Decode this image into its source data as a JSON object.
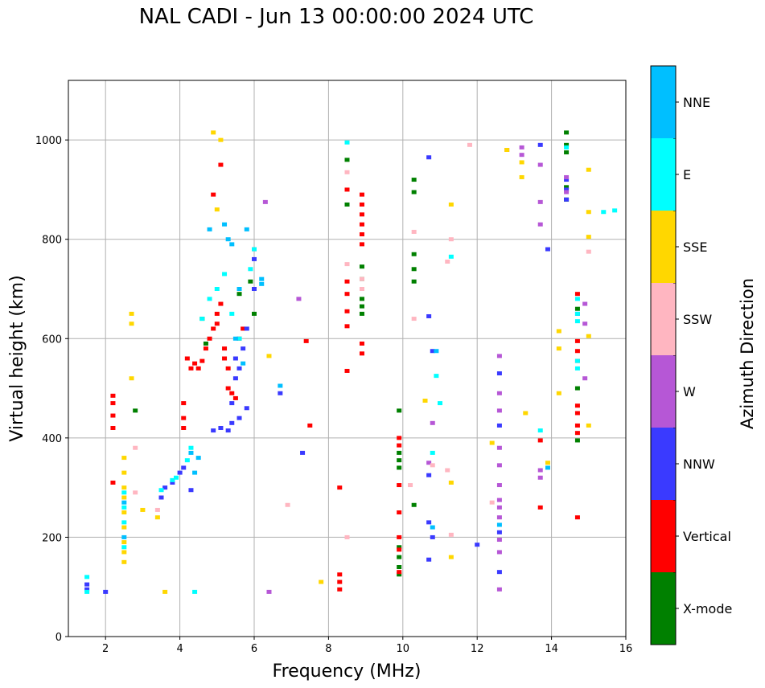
{
  "chart_data": {
    "type": "scatter",
    "title": "NAL CADI - Jun 13 00:00:00 2024 UTC",
    "xlabel": "Frequency (MHz)",
    "ylabel": "Virtual height (km)",
    "xlim": [
      1,
      16
    ],
    "ylim": [
      0,
      1120
    ],
    "xticks": [
      2,
      4,
      6,
      8,
      10,
      12,
      14,
      16
    ],
    "yticks": [
      0,
      200,
      400,
      600,
      800,
      1000
    ],
    "grid": true,
    "colorbar": {
      "label": "Azimuth Direction",
      "categories": [
        "X-mode",
        "Vertical",
        "NNW",
        "W",
        "SSW",
        "SSE",
        "E",
        "NNE"
      ],
      "colors": [
        "#008000",
        "#ff0000",
        "#3a3aff",
        "#b657d6",
        "#ffb6c1",
        "#ffd700",
        "#00ffff",
        "#00bfff"
      ]
    },
    "series": [
      {
        "name": "X-mode",
        "points": [
          [
            2.8,
            455
          ],
          [
            9.9,
            125
          ],
          [
            9.9,
            140
          ],
          [
            9.9,
            160
          ],
          [
            9.9,
            180
          ],
          [
            9.9,
            340
          ],
          [
            9.9,
            355
          ],
          [
            9.9,
            370
          ],
          [
            9.9,
            455
          ],
          [
            10.3,
            265
          ],
          [
            10.3,
            715
          ],
          [
            10.3,
            740
          ],
          [
            10.3,
            770
          ],
          [
            10.3,
            895
          ],
          [
            10.3,
            920
          ],
          [
            8.9,
            650
          ],
          [
            8.9,
            665
          ],
          [
            8.9,
            680
          ],
          [
            8.9,
            720
          ],
          [
            8.9,
            745
          ],
          [
            8.5,
            870
          ],
          [
            8.5,
            960
          ],
          [
            14.4,
            975
          ],
          [
            14.4,
            990
          ],
          [
            14.4,
            1015
          ],
          [
            14.4,
            880
          ],
          [
            14.4,
            905
          ],
          [
            14.7,
            395
          ],
          [
            14.7,
            500
          ],
          [
            14.7,
            660
          ],
          [
            6.0,
            650
          ],
          [
            5.9,
            715
          ],
          [
            4.7,
            590
          ],
          [
            4.6,
            640
          ],
          [
            5.6,
            690
          ]
        ]
      },
      {
        "name": "Vertical",
        "points": [
          [
            2.2,
            420
          ],
          [
            2.2,
            445
          ],
          [
            2.2,
            470
          ],
          [
            2.2,
            485
          ],
          [
            2.2,
            310
          ],
          [
            8.3,
            95
          ],
          [
            8.3,
            110
          ],
          [
            8.3,
            125
          ],
          [
            8.3,
            300
          ],
          [
            8.9,
            570
          ],
          [
            8.9,
            590
          ],
          [
            8.9,
            790
          ],
          [
            8.9,
            810
          ],
          [
            8.9,
            830
          ],
          [
            8.9,
            850
          ],
          [
            8.9,
            870
          ],
          [
            8.9,
            890
          ],
          [
            9.9,
            130
          ],
          [
            9.9,
            175
          ],
          [
            9.9,
            200
          ],
          [
            9.9,
            250
          ],
          [
            9.9,
            305
          ],
          [
            9.9,
            385
          ],
          [
            9.9,
            400
          ],
          [
            4.1,
            420
          ],
          [
            4.1,
            440
          ],
          [
            4.1,
            470
          ],
          [
            4.2,
            560
          ],
          [
            4.3,
            540
          ],
          [
            4.4,
            550
          ],
          [
            4.5,
            540
          ],
          [
            4.6,
            555
          ],
          [
            4.7,
            580
          ],
          [
            4.8,
            600
          ],
          [
            4.9,
            620
          ],
          [
            5.0,
            630
          ],
          [
            5.0,
            650
          ],
          [
            5.1,
            670
          ],
          [
            5.2,
            560
          ],
          [
            5.2,
            580
          ],
          [
            5.3,
            500
          ],
          [
            5.3,
            540
          ],
          [
            5.4,
            490
          ],
          [
            5.5,
            480
          ],
          [
            5.6,
            600
          ],
          [
            5.7,
            620
          ],
          [
            5.1,
            950
          ],
          [
            4.9,
            890
          ],
          [
            6.0,
            780
          ],
          [
            8.5,
            535
          ],
          [
            8.5,
            625
          ],
          [
            8.5,
            655
          ],
          [
            8.5,
            690
          ],
          [
            8.5,
            715
          ],
          [
            8.5,
            900
          ],
          [
            7.5,
            425
          ],
          [
            7.4,
            595
          ],
          [
            13.7,
            260
          ],
          [
            13.7,
            395
          ],
          [
            14.7,
            240
          ],
          [
            14.7,
            410
          ],
          [
            14.7,
            425
          ],
          [
            14.7,
            450
          ],
          [
            14.7,
            465
          ],
          [
            14.7,
            555
          ],
          [
            14.7,
            575
          ],
          [
            14.7,
            595
          ],
          [
            14.7,
            690
          ]
        ]
      },
      {
        "name": "NNW",
        "points": [
          [
            1.5,
            95
          ],
          [
            1.5,
            105
          ],
          [
            2.0,
            90
          ],
          [
            4.3,
            295
          ],
          [
            3.5,
            280
          ],
          [
            3.6,
            300
          ],
          [
            3.8,
            310
          ],
          [
            4.0,
            330
          ],
          [
            4.1,
            340
          ],
          [
            4.9,
            415
          ],
          [
            5.1,
            420
          ],
          [
            5.3,
            415
          ],
          [
            5.4,
            430
          ],
          [
            5.6,
            440
          ],
          [
            5.8,
            460
          ],
          [
            5.4,
            470
          ],
          [
            5.5,
            520
          ],
          [
            5.5,
            560
          ],
          [
            5.6,
            540
          ],
          [
            5.7,
            580
          ],
          [
            5.8,
            620
          ],
          [
            6.0,
            700
          ],
          [
            6.0,
            760
          ],
          [
            6.7,
            490
          ],
          [
            10.7,
            230
          ],
          [
            10.7,
            325
          ],
          [
            10.7,
            155
          ],
          [
            10.8,
            200
          ],
          [
            10.8,
            575
          ],
          [
            10.7,
            645
          ],
          [
            10.7,
            965
          ],
          [
            12.6,
            130
          ],
          [
            12.6,
            210
          ],
          [
            12.6,
            425
          ],
          [
            12.6,
            530
          ],
          [
            13.7,
            990
          ],
          [
            13.9,
            780
          ],
          [
            14.4,
            880
          ],
          [
            14.4,
            900
          ],
          [
            14.4,
            920
          ],
          [
            14.7,
            650
          ],
          [
            7.3,
            370
          ],
          [
            12.0,
            185
          ]
        ]
      },
      {
        "name": "W",
        "points": [
          [
            12.6,
            95
          ],
          [
            12.6,
            170
          ],
          [
            12.6,
            195
          ],
          [
            12.6,
            240
          ],
          [
            12.6,
            260
          ],
          [
            12.6,
            275
          ],
          [
            12.6,
            305
          ],
          [
            12.6,
            345
          ],
          [
            12.6,
            380
          ],
          [
            12.6,
            455
          ],
          [
            12.6,
            490
          ],
          [
            12.6,
            565
          ],
          [
            13.7,
            320
          ],
          [
            13.7,
            335
          ],
          [
            13.7,
            830
          ],
          [
            13.7,
            875
          ],
          [
            13.7,
            950
          ],
          [
            13.2,
            970
          ],
          [
            13.2,
            985
          ],
          [
            14.4,
            895
          ],
          [
            14.4,
            925
          ],
          [
            14.9,
            520
          ],
          [
            14.9,
            630
          ],
          [
            14.9,
            670
          ],
          [
            10.7,
            350
          ],
          [
            10.8,
            430
          ],
          [
            7.2,
            680
          ],
          [
            6.4,
            90
          ],
          [
            6.3,
            875
          ],
          [
            12.8,
            980
          ]
        ]
      },
      {
        "name": "SSW",
        "points": [
          [
            2.8,
            290
          ],
          [
            2.8,
            380
          ],
          [
            3.4,
            255
          ],
          [
            8.5,
            200
          ],
          [
            8.5,
            750
          ],
          [
            8.5,
            935
          ],
          [
            8.9,
            700
          ],
          [
            8.9,
            720
          ],
          [
            11.2,
            335
          ],
          [
            11.3,
            205
          ],
          [
            11.3,
            800
          ],
          [
            11.2,
            755
          ],
          [
            11.8,
            990
          ],
          [
            12.4,
            270
          ],
          [
            15.0,
            775
          ],
          [
            10.3,
            640
          ],
          [
            10.3,
            815
          ],
          [
            10.2,
            305
          ],
          [
            10.8,
            345
          ],
          [
            6.9,
            265
          ]
        ]
      },
      {
        "name": "SSE",
        "points": [
          [
            2.5,
            150
          ],
          [
            2.5,
            170
          ],
          [
            2.5,
            190
          ],
          [
            2.5,
            220
          ],
          [
            2.5,
            250
          ],
          [
            2.5,
            280
          ],
          [
            2.5,
            300
          ],
          [
            2.5,
            330
          ],
          [
            2.5,
            360
          ],
          [
            2.7,
            520
          ],
          [
            2.7,
            630
          ],
          [
            2.7,
            650
          ],
          [
            3.0,
            255
          ],
          [
            3.4,
            240
          ],
          [
            3.6,
            90
          ],
          [
            4.9,
            1015
          ],
          [
            5.1,
            1000
          ],
          [
            5.0,
            860
          ],
          [
            6.4,
            565
          ],
          [
            12.4,
            390
          ],
          [
            12.8,
            980
          ],
          [
            13.2,
            925
          ],
          [
            13.2,
            955
          ],
          [
            13.9,
            350
          ],
          [
            14.2,
            490
          ],
          [
            14.2,
            580
          ],
          [
            14.2,
            615
          ],
          [
            15.0,
            940
          ],
          [
            15.0,
            855
          ],
          [
            15.0,
            805
          ],
          [
            15.0,
            605
          ],
          [
            15.0,
            425
          ],
          [
            10.6,
            475
          ],
          [
            11.3,
            870
          ],
          [
            11.3,
            310
          ],
          [
            11.3,
            160
          ],
          [
            7.8,
            110
          ],
          [
            13.3,
            450
          ]
        ]
      },
      {
        "name": "E",
        "points": [
          [
            1.5,
            90
          ],
          [
            1.5,
            120
          ],
          [
            2.5,
            230
          ],
          [
            2.5,
            260
          ],
          [
            2.5,
            290
          ],
          [
            2.5,
            180
          ],
          [
            3.5,
            295
          ],
          [
            3.8,
            315
          ],
          [
            3.9,
            320
          ],
          [
            4.2,
            355
          ],
          [
            4.3,
            380
          ],
          [
            4.6,
            640
          ],
          [
            4.8,
            680
          ],
          [
            5.0,
            700
          ],
          [
            5.2,
            730
          ],
          [
            5.4,
            650
          ],
          [
            5.6,
            600
          ],
          [
            5.9,
            740
          ],
          [
            6.0,
            780
          ],
          [
            4.4,
            90
          ],
          [
            8.5,
            995
          ],
          [
            10.8,
            370
          ],
          [
            10.9,
            525
          ],
          [
            11.0,
            470
          ],
          [
            11.3,
            765
          ],
          [
            14.7,
            540
          ],
          [
            14.7,
            555
          ],
          [
            14.7,
            635
          ],
          [
            14.7,
            650
          ],
          [
            14.7,
            680
          ],
          [
            15.4,
            855
          ],
          [
            15.7,
            858
          ],
          [
            14.4,
            985
          ],
          [
            13.7,
            415
          ]
        ]
      },
      {
        "name": "NNE",
        "points": [
          [
            2.5,
            200
          ],
          [
            2.5,
            270
          ],
          [
            4.3,
            370
          ],
          [
            4.4,
            330
          ],
          [
            4.5,
            360
          ],
          [
            4.8,
            820
          ],
          [
            5.2,
            830
          ],
          [
            5.3,
            800
          ],
          [
            5.4,
            790
          ],
          [
            5.6,
            700
          ],
          [
            5.8,
            820
          ],
          [
            6.2,
            720
          ],
          [
            6.2,
            710
          ],
          [
            5.5,
            600
          ],
          [
            5.7,
            550
          ],
          [
            6.7,
            505
          ],
          [
            10.8,
            220
          ],
          [
            10.9,
            575
          ],
          [
            12.6,
            225
          ],
          [
            13.9,
            340
          ]
        ]
      }
    ]
  }
}
